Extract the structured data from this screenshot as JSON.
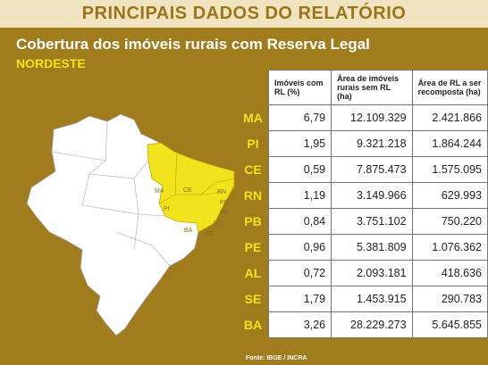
{
  "header": {
    "title": "PRINCIPAIS DADOS DO RELATÓRIO"
  },
  "subtitle": "Cobertura dos imóveis rurais com Reserva Legal",
  "region": "NORDESTE",
  "map": {
    "labels": [
      "MA",
      "PI",
      "CE",
      "RN",
      "PB",
      "PE",
      "AL",
      "SE",
      "BA"
    ]
  },
  "table": {
    "columns": [
      "Imóveis com RL (%)",
      "Área de imóveis rurais sem RL (ha)",
      "Área de RL a ser recomposta (ha)"
    ],
    "rows": [
      [
        "MA",
        "6,79",
        "12.109.329",
        "2.421.866"
      ],
      [
        "PI",
        "1,95",
        "9.321.218",
        "1.864.244"
      ],
      [
        "CE",
        "0,59",
        "7.875.473",
        "1.575.095"
      ],
      [
        "RN",
        "1,19",
        "3.149.966",
        "629.993"
      ],
      [
        "PB",
        "0,84",
        "3.751.102",
        "750.220"
      ],
      [
        "PE",
        "0,96",
        "5.381.809",
        "1.076.362"
      ],
      [
        "AL",
        "0,72",
        "2.093.181",
        "418.636"
      ],
      [
        "SE",
        "1,79",
        "1.453.915",
        "290.783"
      ],
      [
        "BA",
        "3,26",
        "28.229.273",
        "5.645.855"
      ]
    ]
  },
  "source": "Fonte: IBGE / INCRA"
}
